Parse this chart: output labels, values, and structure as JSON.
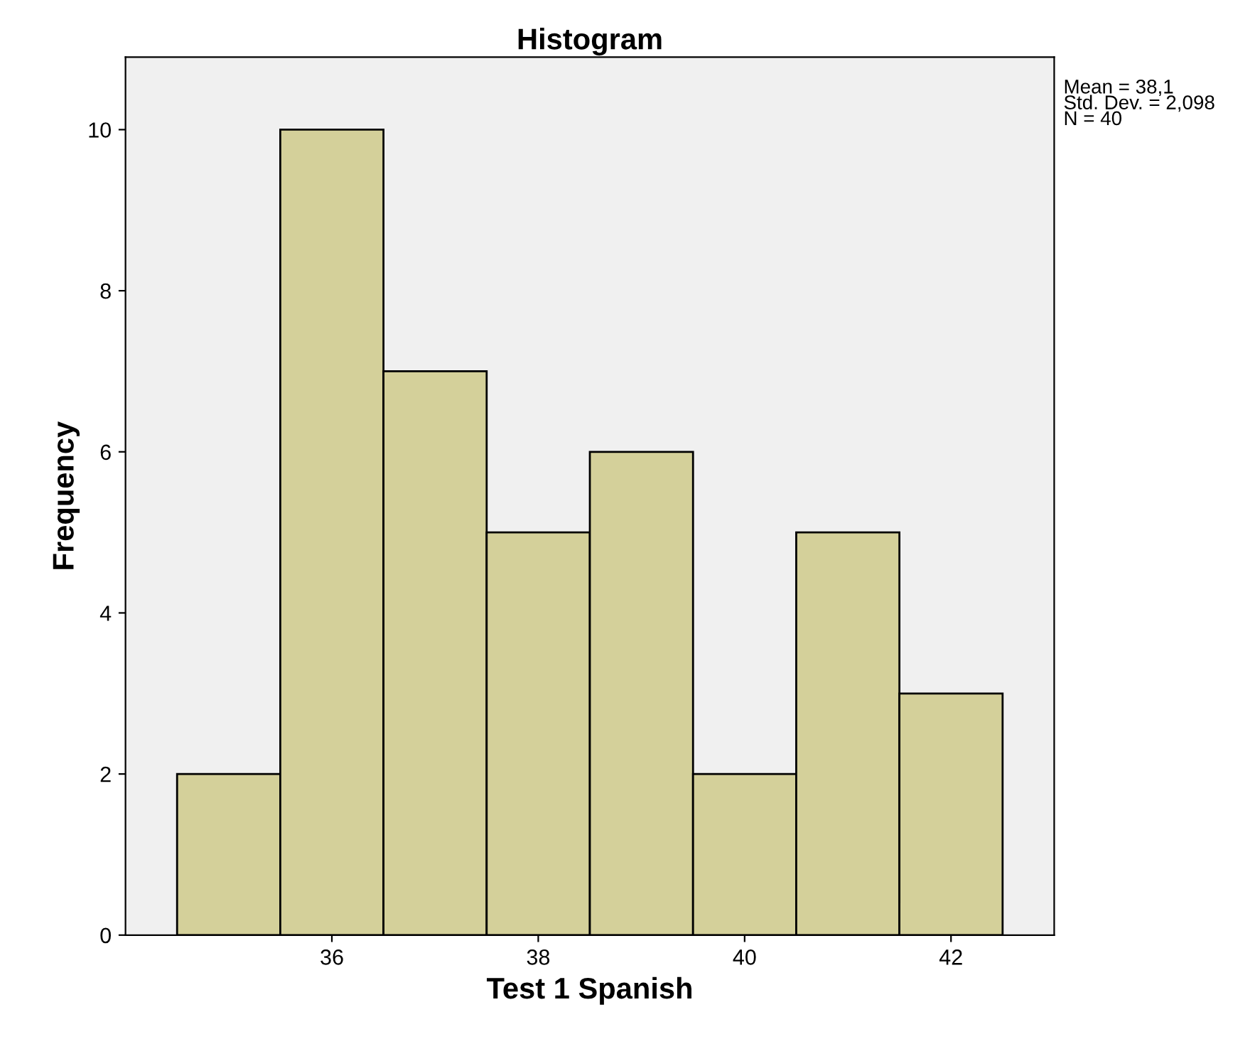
{
  "chart_data": {
    "type": "histogram",
    "title": "Histogram",
    "xlabel": "Test 1 Spanish",
    "ylabel": "Frequency",
    "bins": [
      34.5,
      35.5,
      36.5,
      37.5,
      38.5,
      39.5,
      40.5,
      41.5,
      42.5
    ],
    "values": [
      2,
      10,
      7,
      5,
      6,
      2,
      5,
      3
    ],
    "color": "#d4d09a",
    "xlim": [
      34,
      43
    ],
    "xticks": [
      36,
      38,
      40,
      42
    ],
    "ylim": [
      0,
      10.9
    ],
    "yticks": [
      0,
      2,
      4,
      6,
      8,
      10
    ],
    "grid": false,
    "annotations": [
      "Mean = 38,1",
      "Std. Dev. = 2,098",
      "N = 40"
    ]
  }
}
